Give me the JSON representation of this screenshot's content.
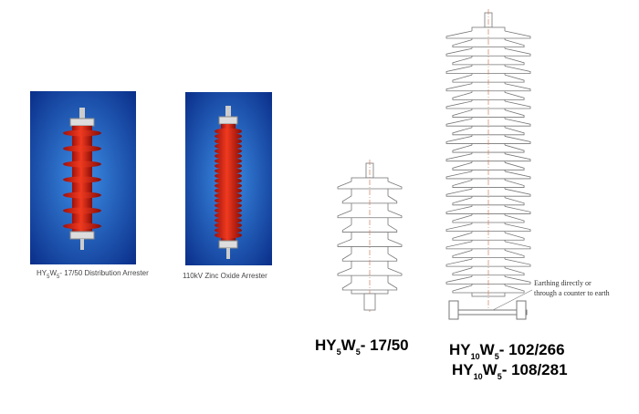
{
  "photos": [
    {
      "caption": {
        "parts": [
          {
            "text": "HY"
          },
          {
            "text": "5",
            "sub": true
          },
          {
            "text": "W"
          },
          {
            "text": "5",
            "sub": true
          },
          {
            "text": "- 17/50 Distribution Arrester"
          }
        ]
      }
    },
    {
      "caption": {
        "parts": [
          {
            "text": "110kV Zinc Oxide Arrester"
          }
        ]
      }
    }
  ],
  "drawings": [
    {
      "labels": [
        {
          "parts": [
            {
              "text": "HY"
            },
            {
              "text": "5",
              "sub": true
            },
            {
              "text": "W"
            },
            {
              "text": "5",
              "sub": true
            },
            {
              "text": "- 17/50"
            }
          ]
        }
      ]
    },
    {
      "labels": [
        {
          "parts": [
            {
              "text": "HY"
            },
            {
              "text": "10",
              "sub": true
            },
            {
              "text": "W"
            },
            {
              "text": "5",
              "sub": true
            },
            {
              "text": "- 102/266"
            }
          ]
        },
        {
          "parts": [
            {
              "text": "HY"
            },
            {
              "text": "10",
              "sub": true
            },
            {
              "text": "W"
            },
            {
              "text": "5",
              "sub": true
            },
            {
              "text": "- 108/281"
            }
          ]
        }
      ],
      "annotation": [
        "Earthing directly or",
        "through a counter to earth"
      ]
    }
  ]
}
